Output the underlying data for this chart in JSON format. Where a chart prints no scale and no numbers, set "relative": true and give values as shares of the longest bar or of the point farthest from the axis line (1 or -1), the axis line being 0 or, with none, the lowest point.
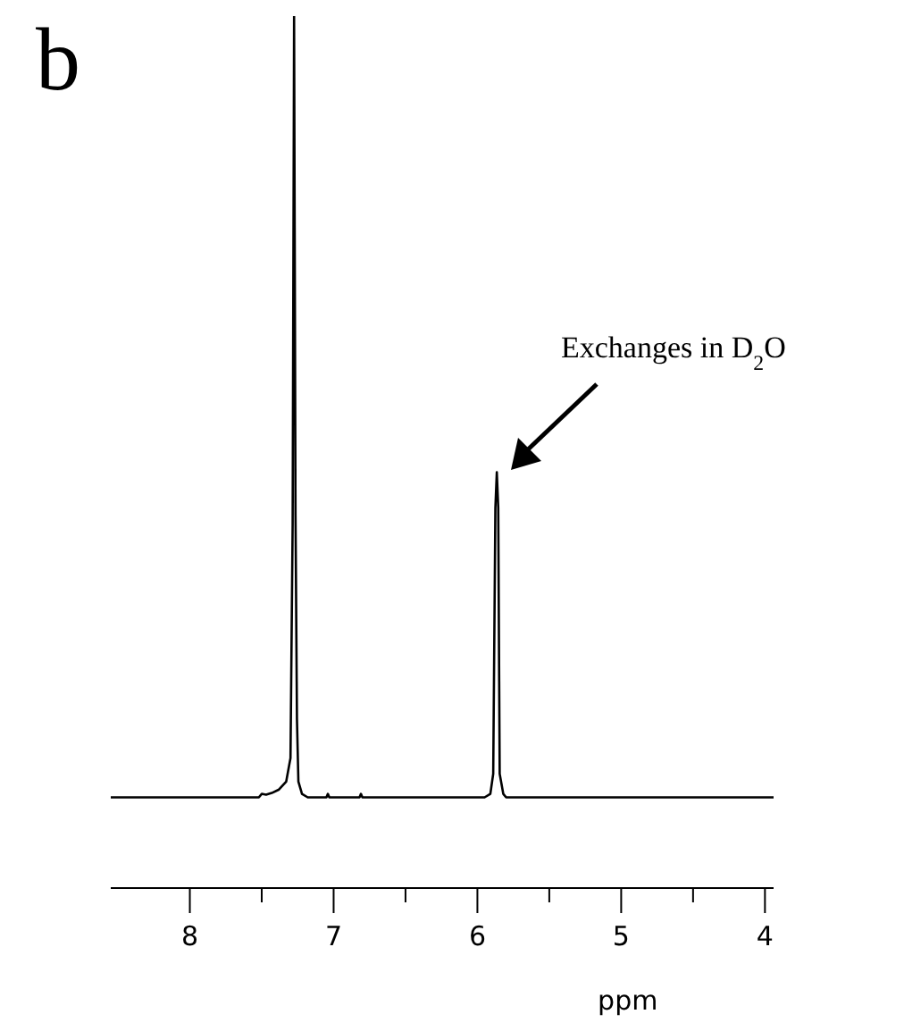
{
  "chart_data": {
    "type": "line",
    "title": "b",
    "xlabel": "ppm",
    "relative": true,
    "x": [
      8.55,
      7.52,
      7.5,
      7.47,
      7.43,
      7.38,
      7.33,
      7.3,
      7.285,
      7.275,
      7.265,
      7.255,
      7.245,
      7.22,
      7.18,
      7.05,
      7.04,
      7.03,
      6.82,
      6.81,
      6.8,
      5.95,
      5.91,
      5.89,
      5.875,
      5.865,
      5.855,
      5.845,
      5.82,
      5.8,
      3.94
    ],
    "series": [
      {
        "color": "#000000",
        "values": [
          0.104,
          0.104,
          0.108,
          0.107,
          0.109,
          0.113,
          0.122,
          0.149,
          0.418,
          1,
          0.427,
          0.194,
          0.122,
          0.108,
          0.104,
          0.104,
          0.108,
          0.104,
          0.104,
          0.108,
          0.104,
          0.104,
          0.108,
          0.131,
          0.436,
          0.477,
          0.436,
          0.131,
          0.108,
          0.104,
          0.104
        ]
      }
    ],
    "xlim": [
      8.55,
      3.94
    ],
    "xticks": [
      8,
      {
        "value": 7.5,
        "label": null
      },
      7,
      {
        "value": 6.5,
        "label": null
      },
      6,
      {
        "value": 5.5,
        "label": null
      },
      5,
      {
        "value": 4.5,
        "label": null
      },
      4
    ],
    "marker": "none",
    "line_style": "solid",
    "grid": false,
    "legend": false,
    "annotations": [
      "Exchanges in D$_{2}$O"
    ]
  }
}
